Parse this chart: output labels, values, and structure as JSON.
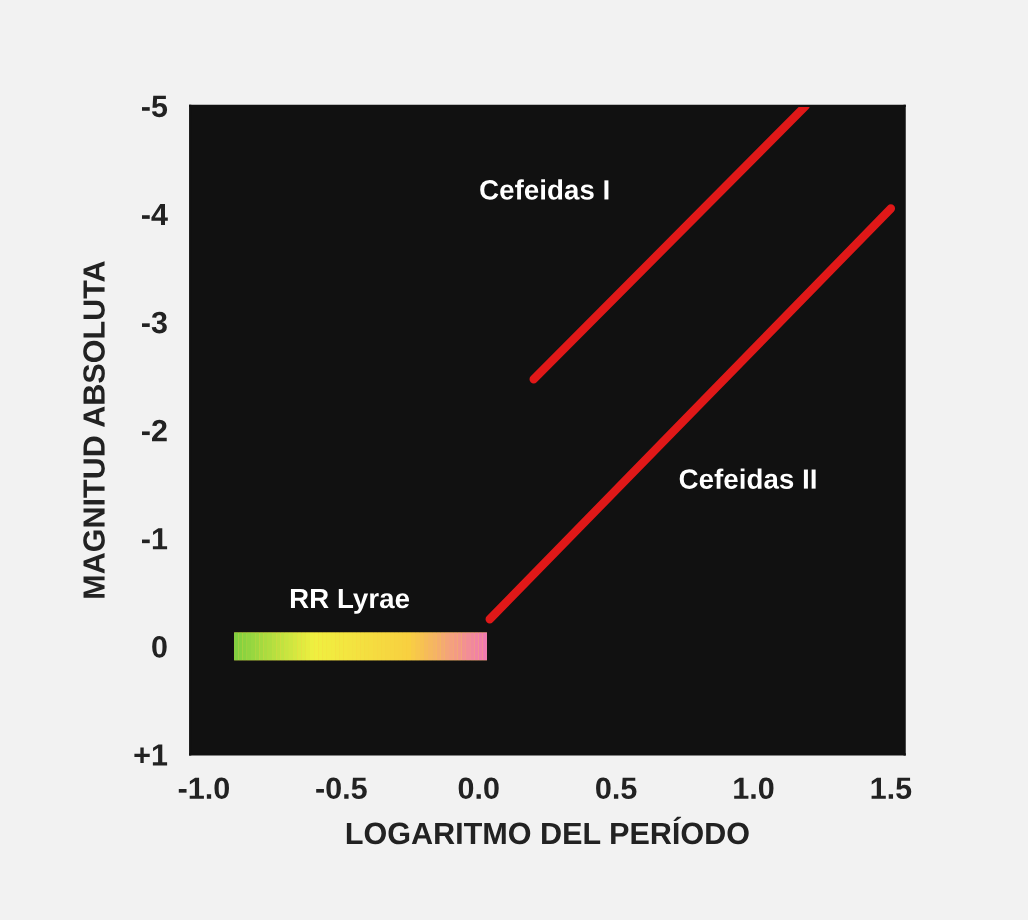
{
  "chart_data": {
    "type": "line",
    "xlabel": "LOGARITMO DEL PERÍODO",
    "ylabel": "MAGNITUD ABSOLUTA",
    "xlim": [
      -1.05,
      1.55
    ],
    "ylim": [
      1,
      -5
    ],
    "xticks": [
      {
        "value": -1.0,
        "label": "-1.0"
      },
      {
        "value": -0.5,
        "label": "-0.5"
      },
      {
        "value": 0.0,
        "label": "0.0"
      },
      {
        "value": 0.5,
        "label": "0.5"
      },
      {
        "value": 1.0,
        "label": "1.0"
      },
      {
        "value": 1.5,
        "label": "1.5"
      }
    ],
    "yticks": [
      -5,
      -4,
      -3,
      -2,
      -1,
      0,
      {
        "value": 1,
        "label": "+1"
      }
    ],
    "grid": false,
    "legend": false,
    "marker": "none",
    "line_style": "solid",
    "series": [
      {
        "name": "Cefeidas I",
        "color": "#e01818",
        "x": [
          0.2,
          1.19
        ],
        "values": [
          -2.47,
          -5
        ]
      },
      {
        "name": "Cefeidas II",
        "color": "#e01818",
        "x": [
          0.04,
          1.5
        ],
        "values": [
          -0.25,
          -4.05
        ]
      },
      {
        "name": "RR Lyrae",
        "colors": [
          "#80d040",
          "#f0f040",
          "#f8d040",
          "#f07ab0"
        ],
        "x": [
          -0.89,
          -0.6,
          -0.25,
          0.03
        ],
        "values": [
          0,
          0,
          0,
          0
        ]
      }
    ]
  }
}
